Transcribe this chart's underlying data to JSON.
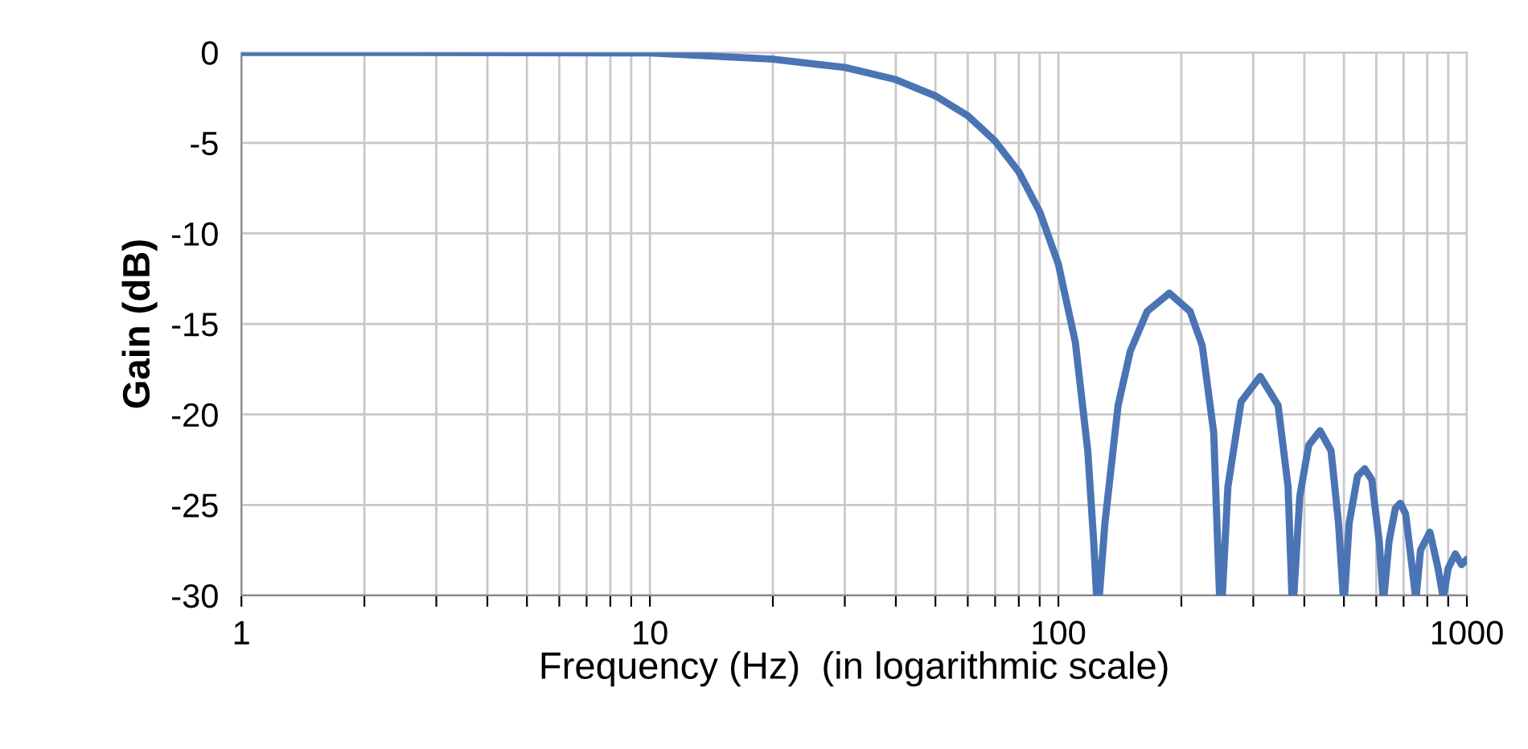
{
  "chart_data": {
    "type": "line",
    "xlabel": "Frequency (Hz)  (in logarithmic scale)",
    "ylabel": "Gain (dB)",
    "log": "x",
    "grid": true,
    "marker": "none",
    "line_style": "solid",
    "legend": false,
    "xlim": [
      1,
      1000
    ],
    "ylim": [
      -30,
      0
    ],
    "xticks": [
      1,
      {
        "value": 2,
        "label": null
      },
      {
        "value": 3,
        "label": null
      },
      {
        "value": 4,
        "label": null
      },
      {
        "value": 5,
        "label": null
      },
      {
        "value": 6,
        "label": null
      },
      {
        "value": 7,
        "label": null
      },
      {
        "value": 8,
        "label": null
      },
      {
        "value": 9,
        "label": null
      },
      10,
      {
        "value": 20,
        "label": null
      },
      {
        "value": 30,
        "label": null
      },
      {
        "value": 40,
        "label": null
      },
      {
        "value": 50,
        "label": null
      },
      {
        "value": 60,
        "label": null
      },
      {
        "value": 70,
        "label": null
      },
      {
        "value": 80,
        "label": null
      },
      {
        "value": 90,
        "label": null
      },
      100,
      {
        "value": 200,
        "label": null
      },
      {
        "value": 300,
        "label": null
      },
      {
        "value": 400,
        "label": null
      },
      {
        "value": 500,
        "label": null
      },
      {
        "value": 600,
        "label": null
      },
      {
        "value": 700,
        "label": null
      },
      {
        "value": 800,
        "label": null
      },
      {
        "value": 900,
        "label": null
      },
      1000
    ],
    "yticks": [
      0,
      -5,
      -10,
      -15,
      -20,
      -25,
      -30
    ],
    "series": [
      {
        "color": "#4a74b4",
        "x": [
          1,
          5,
          10,
          20,
          30,
          40,
          50,
          60,
          70,
          80,
          90,
          100,
          110,
          118,
          122,
          124,
          126,
          130,
          140,
          150,
          165,
          187,
          210,
          225,
          240,
          248,
          252,
          260,
          280,
          312,
          345,
          365,
          373,
          377,
          390,
          410,
          437,
          465,
          485,
          498,
          502,
          515,
          540,
          562,
          585,
          610,
          623,
          627,
          645,
          668,
          687,
          708,
          735,
          748,
          752,
          770,
          812,
          850,
          873,
          877,
          900,
          937,
          970,
          1000
        ],
        "values": [
          0,
          -0.01,
          -0.03,
          -0.37,
          -0.83,
          -1.5,
          -2.4,
          -3.5,
          -4.9,
          -6.6,
          -8.8,
          -11.7,
          -16,
          -22,
          -27,
          -30,
          -30,
          -26,
          -19.5,
          -16.5,
          -14.3,
          -13.3,
          -14.3,
          -16.2,
          -21,
          -30,
          -30,
          -24,
          -19.3,
          -17.9,
          -19.5,
          -24,
          -30,
          -30,
          -24.5,
          -21.7,
          -20.9,
          -22,
          -26,
          -30,
          -30,
          -26,
          -23.4,
          -23,
          -23.6,
          -27,
          -30,
          -30,
          -27,
          -25.2,
          -24.9,
          -25.5,
          -28.5,
          -30,
          -30,
          -27.5,
          -26.5,
          -28.5,
          -30,
          -30,
          -28.5,
          -27.7,
          -28.3,
          -28
        ]
      }
    ]
  }
}
